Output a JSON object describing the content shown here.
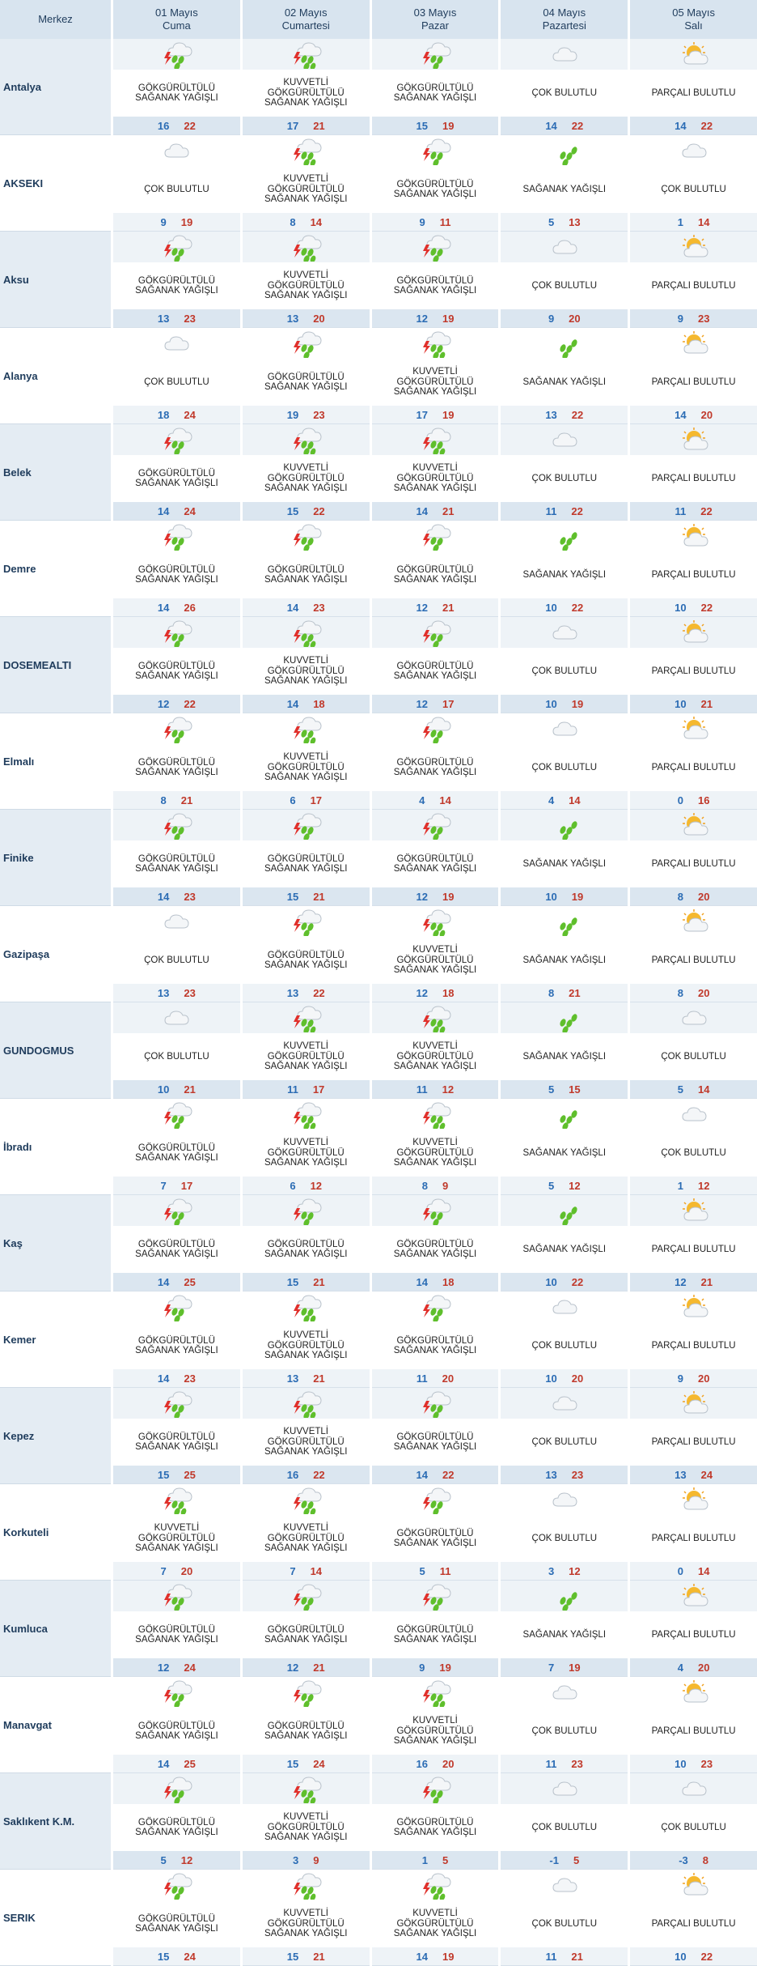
{
  "header": {
    "merkez": "Merkez",
    "days": [
      {
        "date": "01 Mayıs",
        "name": "Cuma"
      },
      {
        "date": "02 Mayıs",
        "name": "Cumartesi"
      },
      {
        "date": "03 Mayıs",
        "name": "Pazar"
      },
      {
        "date": "04 Mayıs",
        "name": "Pazartesi"
      },
      {
        "date": "05 Mayıs",
        "name": "Salı"
      }
    ]
  },
  "icons": {
    "GOK": "thunder-shower-icon",
    "KUV": "heavy-thunder-shower-icon",
    "SAG": "shower-icon",
    "COK": "cloudy-icon",
    "PAR": "partly-cloudy-icon"
  },
  "labels": {
    "GOK": "GÖKGÜRÜLTÜLÜ\nSAĞANAK YAĞIŞLI",
    "KUV": "KUVVETLİ\nGÖKGÜRÜLTÜLÜ\nSAĞANAK YAĞIŞLI",
    "SAG": "SAĞANAK YAĞIŞLI",
    "COK": "ÇOK BULUTLU",
    "PAR": "PARÇALI BULUTLU"
  },
  "cities": [
    {
      "name": "Antalya",
      "days": [
        {
          "w": "GOK",
          "min": "16",
          "max": "22"
        },
        {
          "w": "KUV",
          "min": "17",
          "max": "21"
        },
        {
          "w": "GOK",
          "min": "15",
          "max": "19"
        },
        {
          "w": "COK",
          "min": "14",
          "max": "22"
        },
        {
          "w": "PAR",
          "min": "14",
          "max": "22"
        }
      ]
    },
    {
      "name": "AKSEKI",
      "days": [
        {
          "w": "COK",
          "min": "9",
          "max": "19"
        },
        {
          "w": "KUV",
          "min": "8",
          "max": "14"
        },
        {
          "w": "GOK",
          "min": "9",
          "max": "11"
        },
        {
          "w": "SAG",
          "min": "5",
          "max": "13"
        },
        {
          "w": "COK",
          "min": "1",
          "max": "14"
        }
      ]
    },
    {
      "name": "Aksu",
      "days": [
        {
          "w": "GOK",
          "min": "13",
          "max": "23"
        },
        {
          "w": "KUV",
          "min": "13",
          "max": "20"
        },
        {
          "w": "GOK",
          "min": "12",
          "max": "19"
        },
        {
          "w": "COK",
          "min": "9",
          "max": "20"
        },
        {
          "w": "PAR",
          "min": "9",
          "max": "23"
        }
      ]
    },
    {
      "name": "Alanya",
      "days": [
        {
          "w": "COK",
          "min": "18",
          "max": "24"
        },
        {
          "w": "GOK",
          "min": "19",
          "max": "23"
        },
        {
          "w": "KUV",
          "min": "17",
          "max": "19"
        },
        {
          "w": "SAG",
          "min": "13",
          "max": "22"
        },
        {
          "w": "PAR",
          "min": "14",
          "max": "20"
        }
      ]
    },
    {
      "name": "Belek",
      "days": [
        {
          "w": "GOK",
          "min": "14",
          "max": "24"
        },
        {
          "w": "KUV",
          "min": "15",
          "max": "22"
        },
        {
          "w": "KUV",
          "min": "14",
          "max": "21"
        },
        {
          "w": "COK",
          "min": "11",
          "max": "22"
        },
        {
          "w": "PAR",
          "min": "11",
          "max": "22"
        }
      ]
    },
    {
      "name": "Demre",
      "days": [
        {
          "w": "GOK",
          "min": "14",
          "max": "26"
        },
        {
          "w": "GOK",
          "min": "14",
          "max": "23"
        },
        {
          "w": "GOK",
          "min": "12",
          "max": "21"
        },
        {
          "w": "SAG",
          "min": "10",
          "max": "22"
        },
        {
          "w": "PAR",
          "min": "10",
          "max": "22"
        }
      ]
    },
    {
      "name": "DOSEMEALTI",
      "days": [
        {
          "w": "GOK",
          "min": "12",
          "max": "22"
        },
        {
          "w": "KUV",
          "min": "14",
          "max": "18"
        },
        {
          "w": "GOK",
          "min": "12",
          "max": "17"
        },
        {
          "w": "COK",
          "min": "10",
          "max": "19"
        },
        {
          "w": "PAR",
          "min": "10",
          "max": "21"
        }
      ]
    },
    {
      "name": "Elmalı",
      "days": [
        {
          "w": "GOK",
          "min": "8",
          "max": "21"
        },
        {
          "w": "KUV",
          "min": "6",
          "max": "17"
        },
        {
          "w": "GOK",
          "min": "4",
          "max": "14"
        },
        {
          "w": "COK",
          "min": "4",
          "max": "14"
        },
        {
          "w": "PAR",
          "min": "0",
          "max": "16"
        }
      ]
    },
    {
      "name": "Finike",
      "days": [
        {
          "w": "GOK",
          "min": "14",
          "max": "23"
        },
        {
          "w": "GOK",
          "min": "15",
          "max": "21"
        },
        {
          "w": "GOK",
          "min": "12",
          "max": "19"
        },
        {
          "w": "SAG",
          "min": "10",
          "max": "19"
        },
        {
          "w": "PAR",
          "min": "8",
          "max": "20"
        }
      ]
    },
    {
      "name": "Gazipaşa",
      "days": [
        {
          "w": "COK",
          "min": "13",
          "max": "23"
        },
        {
          "w": "GOK",
          "min": "13",
          "max": "22"
        },
        {
          "w": "KUV",
          "min": "12",
          "max": "18"
        },
        {
          "w": "SAG",
          "min": "8",
          "max": "21"
        },
        {
          "w": "PAR",
          "min": "8",
          "max": "20"
        }
      ]
    },
    {
      "name": "GUNDOGMUS",
      "days": [
        {
          "w": "COK",
          "min": "10",
          "max": "21"
        },
        {
          "w": "KUV",
          "min": "11",
          "max": "17"
        },
        {
          "w": "KUV",
          "min": "11",
          "max": "12"
        },
        {
          "w": "SAG",
          "min": "5",
          "max": "15"
        },
        {
          "w": "COK",
          "min": "5",
          "max": "14"
        }
      ]
    },
    {
      "name": "İbradı",
      "days": [
        {
          "w": "GOK",
          "min": "7",
          "max": "17"
        },
        {
          "w": "KUV",
          "min": "6",
          "max": "12"
        },
        {
          "w": "KUV",
          "min": "8",
          "max": "9"
        },
        {
          "w": "SAG",
          "min": "5",
          "max": "12"
        },
        {
          "w": "COK",
          "min": "1",
          "max": "12"
        }
      ]
    },
    {
      "name": "Kaş",
      "days": [
        {
          "w": "GOK",
          "min": "14",
          "max": "25"
        },
        {
          "w": "GOK",
          "min": "15",
          "max": "21"
        },
        {
          "w": "GOK",
          "min": "14",
          "max": "18"
        },
        {
          "w": "SAG",
          "min": "10",
          "max": "22"
        },
        {
          "w": "PAR",
          "min": "12",
          "max": "21"
        }
      ]
    },
    {
      "name": "Kemer",
      "days": [
        {
          "w": "GOK",
          "min": "14",
          "max": "23"
        },
        {
          "w": "KUV",
          "min": "13",
          "max": "21"
        },
        {
          "w": "GOK",
          "min": "11",
          "max": "20"
        },
        {
          "w": "COK",
          "min": "10",
          "max": "20"
        },
        {
          "w": "PAR",
          "min": "9",
          "max": "20"
        }
      ]
    },
    {
      "name": "Kepez",
      "days": [
        {
          "w": "GOK",
          "min": "15",
          "max": "25"
        },
        {
          "w": "KUV",
          "min": "16",
          "max": "22"
        },
        {
          "w": "GOK",
          "min": "14",
          "max": "22"
        },
        {
          "w": "COK",
          "min": "13",
          "max": "23"
        },
        {
          "w": "PAR",
          "min": "13",
          "max": "24"
        }
      ]
    },
    {
      "name": "Korkuteli",
      "days": [
        {
          "w": "KUV",
          "min": "7",
          "max": "20"
        },
        {
          "w": "KUV",
          "min": "7",
          "max": "14"
        },
        {
          "w": "GOK",
          "min": "5",
          "max": "11"
        },
        {
          "w": "COK",
          "min": "3",
          "max": "12"
        },
        {
          "w": "PAR",
          "min": "0",
          "max": "14"
        }
      ]
    },
    {
      "name": "Kumluca",
      "days": [
        {
          "w": "GOK",
          "min": "12",
          "max": "24"
        },
        {
          "w": "GOK",
          "min": "12",
          "max": "21"
        },
        {
          "w": "GOK",
          "min": "9",
          "max": "19"
        },
        {
          "w": "SAG",
          "min": "7",
          "max": "19"
        },
        {
          "w": "PAR",
          "min": "4",
          "max": "20"
        }
      ]
    },
    {
      "name": "Manavgat",
      "days": [
        {
          "w": "GOK",
          "min": "14",
          "max": "25"
        },
        {
          "w": "GOK",
          "min": "15",
          "max": "24"
        },
        {
          "w": "KUV",
          "min": "16",
          "max": "20"
        },
        {
          "w": "COK",
          "min": "11",
          "max": "23"
        },
        {
          "w": "PAR",
          "min": "10",
          "max": "23"
        }
      ]
    },
    {
      "name": "Saklıkent K.M.",
      "days": [
        {
          "w": "GOK",
          "min": "5",
          "max": "12"
        },
        {
          "w": "KUV",
          "min": "3",
          "max": "9"
        },
        {
          "w": "GOK",
          "min": "1",
          "max": "5"
        },
        {
          "w": "COK",
          "min": "-1",
          "max": "5"
        },
        {
          "w": "COK",
          "min": "-3",
          "max": "8"
        }
      ]
    },
    {
      "name": "SERIK",
      "days": [
        {
          "w": "GOK",
          "min": "15",
          "max": "24"
        },
        {
          "w": "KUV",
          "min": "15",
          "max": "21"
        },
        {
          "w": "KUV",
          "min": "14",
          "max": "19"
        },
        {
          "w": "COK",
          "min": "11",
          "max": "21"
        },
        {
          "w": "PAR",
          "min": "10",
          "max": "22"
        }
      ]
    }
  ]
}
